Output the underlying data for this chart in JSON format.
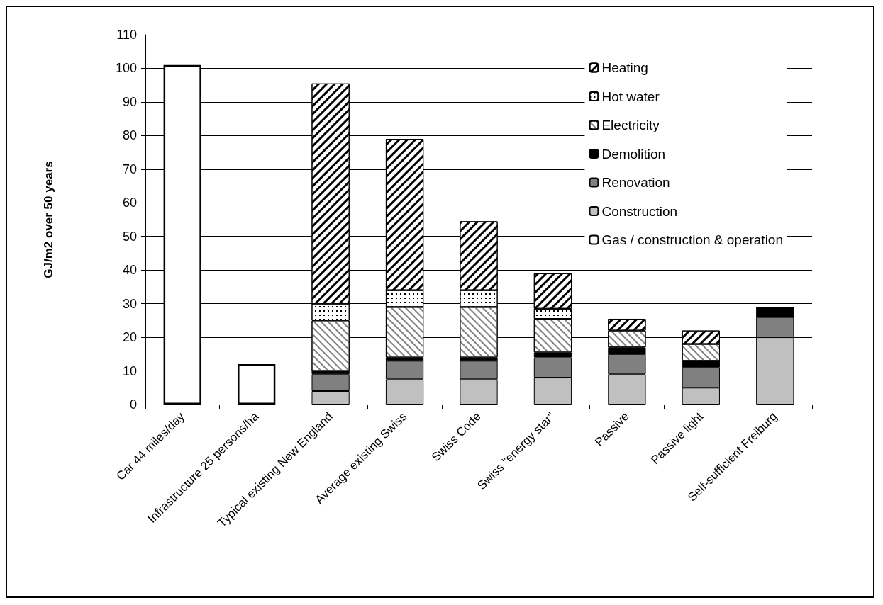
{
  "chart_data": {
    "type": "bar",
    "stacked": true,
    "ylabel": "GJ/m2 over 50 years",
    "categories": [
      "Car 44 miles/day",
      "Infrastructure 25 persons/ha",
      "Typical existing New England",
      "Average existing Swiss",
      "Swiss Code",
      "Swiss \"energy star\"",
      "Passive",
      "Passive light",
      "Self-sufficient Freiburg"
    ],
    "series": [
      {
        "name": "Gas / construction & operation",
        "color": "#ffffff",
        "values": [
          101,
          12,
          null,
          null,
          null,
          null,
          null,
          null,
          null
        ]
      },
      {
        "name": "Construction",
        "color": "#c0c0c0",
        "values": [
          null,
          null,
          4,
          7.5,
          7.5,
          8,
          9,
          5,
          20
        ]
      },
      {
        "name": "Renovation",
        "color": "#808080",
        "values": [
          null,
          null,
          5,
          5.5,
          5.5,
          6,
          6,
          6,
          6
        ]
      },
      {
        "name": "Demolition",
        "color": "#000000",
        "values": [
          null,
          null,
          1,
          1,
          1,
          1.5,
          2,
          2,
          3
        ]
      },
      {
        "name": "Electricity",
        "color": "#ffffff",
        "values": [
          null,
          null,
          15,
          15,
          15,
          10,
          5,
          5,
          null
        ]
      },
      {
        "name": "Hot water",
        "color": "#ffffff",
        "values": [
          null,
          null,
          5,
          5,
          5,
          3,
          null,
          null,
          null
        ]
      },
      {
        "name": "Heating",
        "color": "#ffffff",
        "values": [
          null,
          null,
          65.5,
          45,
          20.5,
          10.5,
          3.5,
          4,
          null
        ]
      }
    ],
    "ylim": [
      0,
      110
    ],
    "yticks": [
      0,
      10,
      20,
      30,
      40,
      50,
      60,
      70,
      80,
      90,
      100,
      110
    ],
    "grid": "y",
    "legend": "top right"
  }
}
